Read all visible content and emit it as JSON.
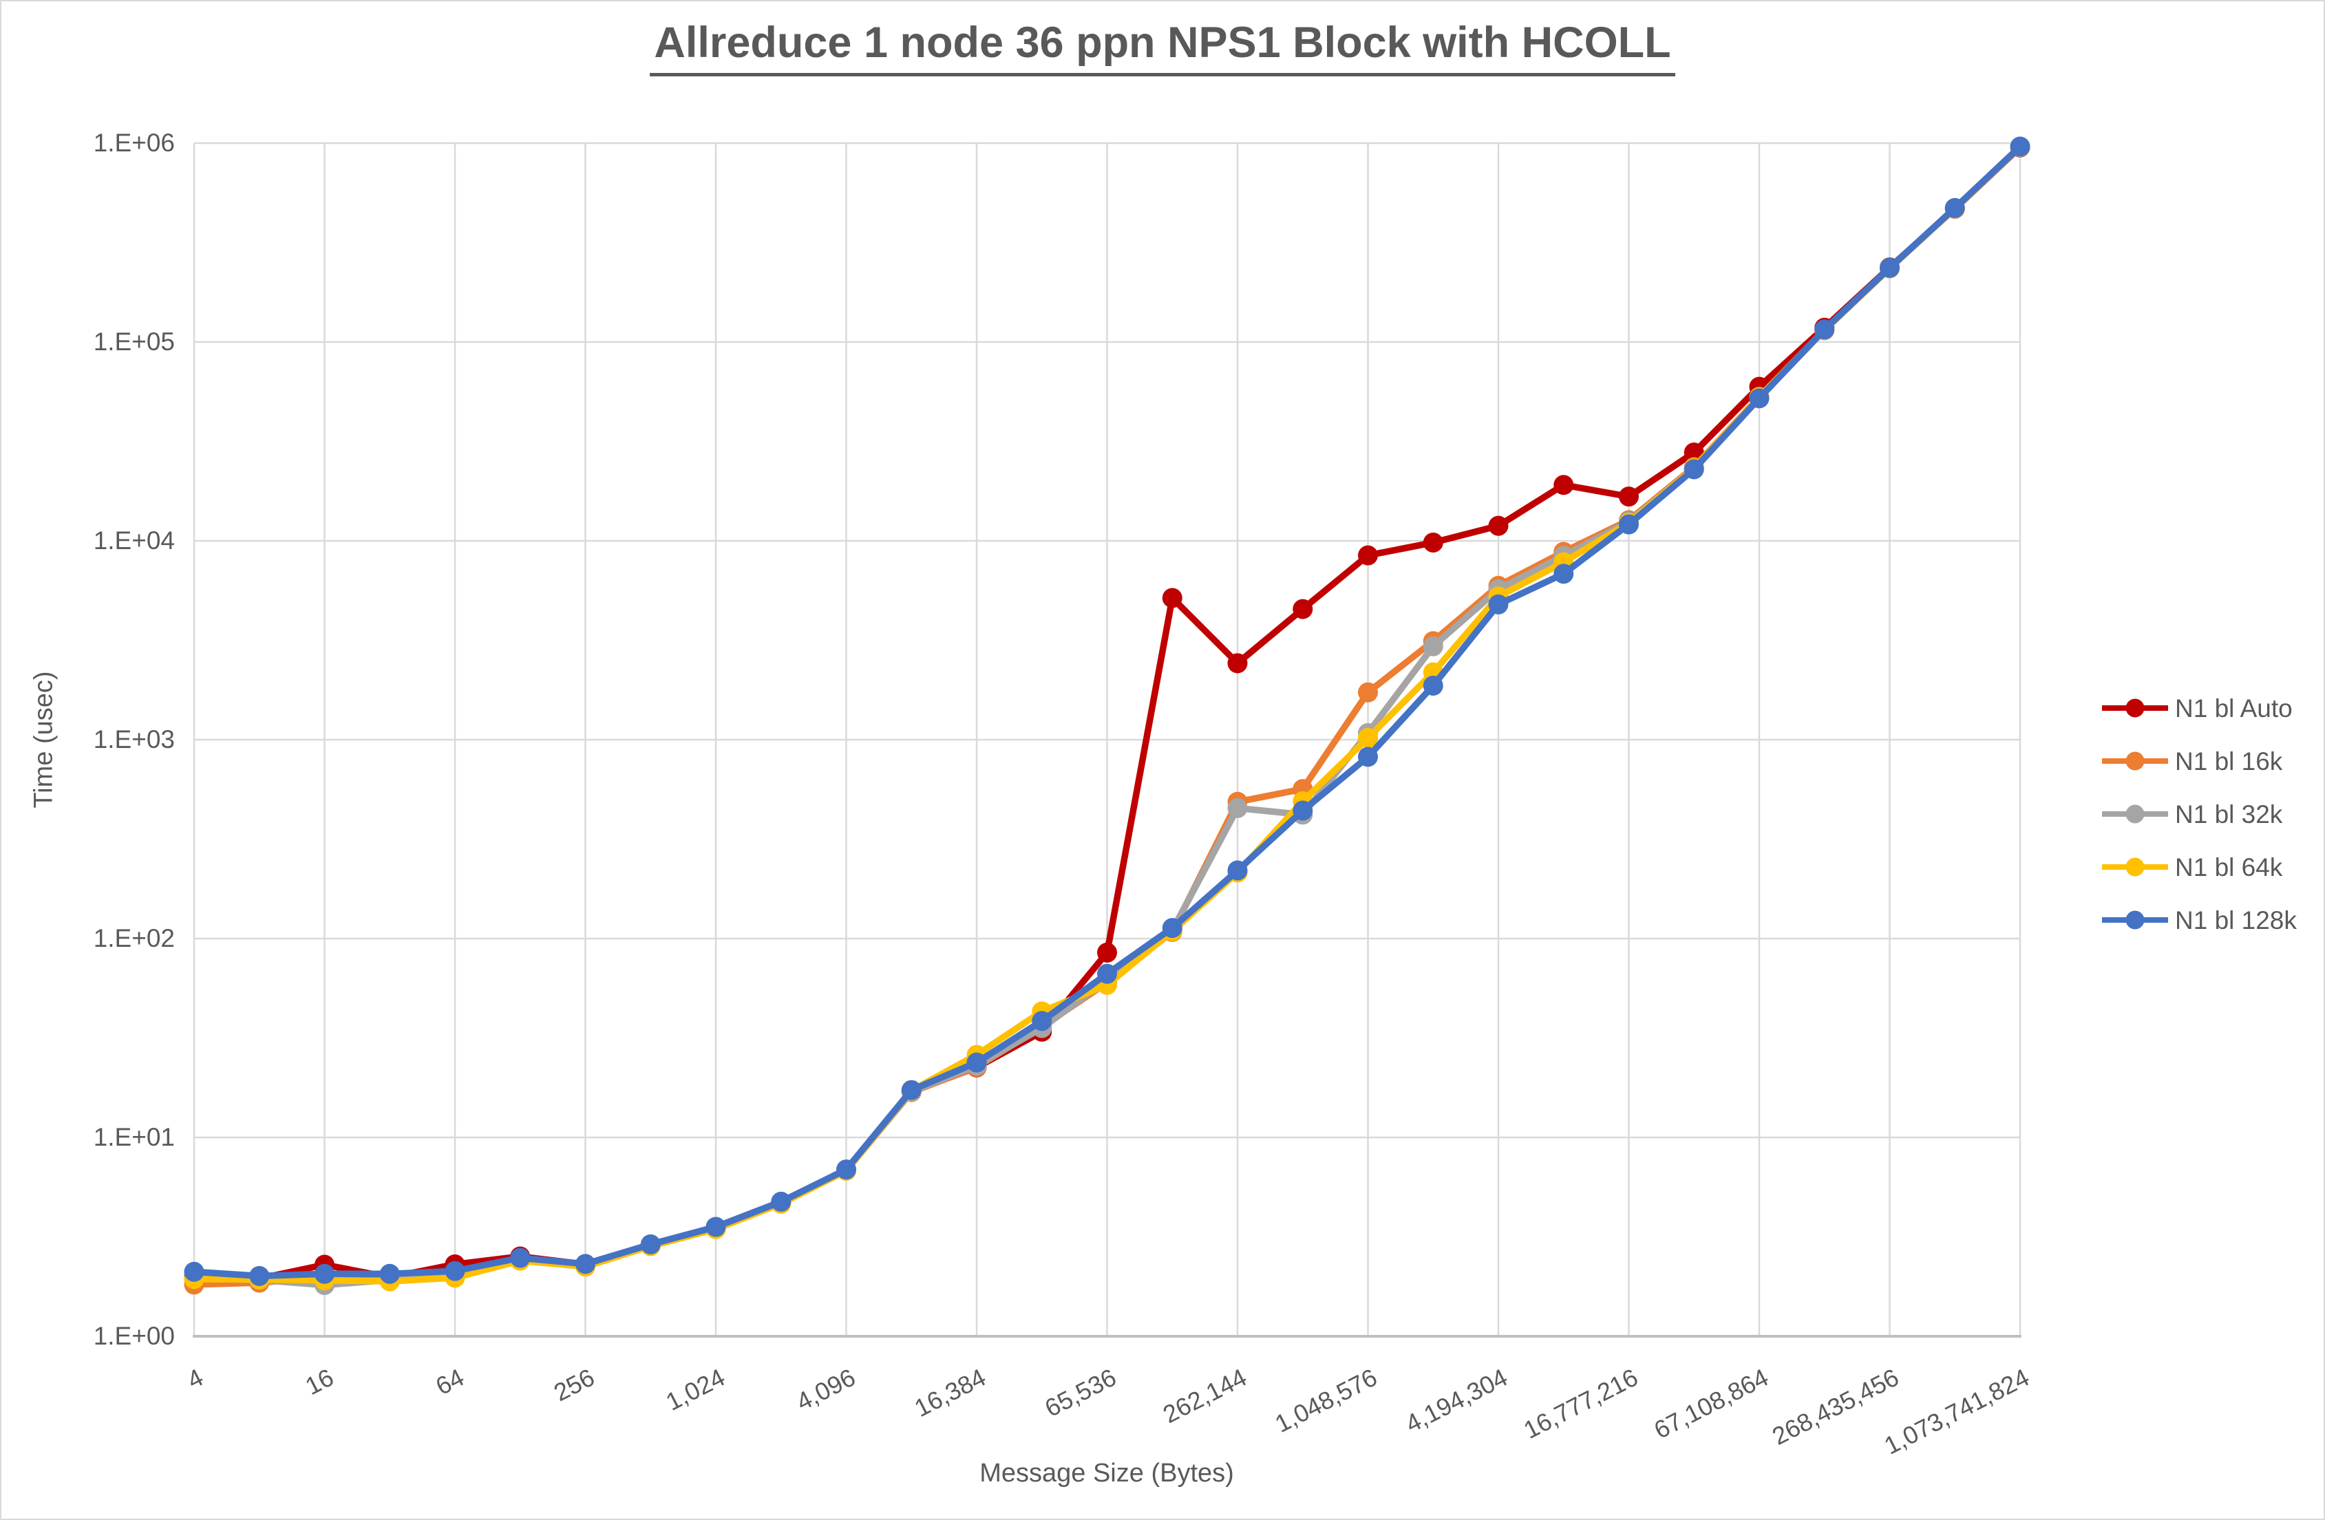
{
  "chart_data": {
    "type": "line",
    "title": "Allreduce 1 node 36 ppn NPS1 Block with HCOLL",
    "xlabel": "Message Size (Bytes)",
    "ylabel": "Time (usec)",
    "x_scale": "log2",
    "y_scale": "log10",
    "xlim": [
      4,
      1073741824
    ],
    "ylim": [
      1,
      1000000
    ],
    "grid": true,
    "legend_position": "right",
    "x": [
      4,
      8,
      16,
      32,
      64,
      128,
      256,
      512,
      1024,
      2048,
      4096,
      8192,
      16384,
      32768,
      65536,
      131072,
      262144,
      524288,
      1048576,
      2097152,
      4194304,
      8388608,
      16777216,
      33554432,
      67108864,
      134217728,
      268435456,
      536870912,
      1073741824
    ],
    "x_tick_labels": [
      "4",
      "16",
      "64",
      "256",
      "1,024",
      "4,096",
      "16,384",
      "65,536",
      "262,144",
      "1,048,576",
      "4,194,304",
      "16,777,216",
      "67,108,864",
      "268,435,456",
      "1,073,741,824"
    ],
    "y_tick_labels": [
      "1.E+00",
      "1.E+01",
      "1.E+02",
      "1.E+03",
      "1.E+04",
      "1.E+05",
      "1.E+06"
    ],
    "series": [
      {
        "name": "N1 bl Auto",
        "color": "#C00000",
        "values": [
          2.0,
          1.95,
          2.29,
          1.98,
          2.3,
          2.52,
          2.3,
          2.88,
          3.52,
          4.7,
          6.85,
          17.0,
          22.5,
          34,
          85,
          5160,
          2425,
          4540,
          8450,
          9800,
          11900,
          19100,
          16700,
          27800,
          59500,
          118000,
          237000,
          468000,
          952000
        ]
      },
      {
        "name": "N1 bl 16k",
        "color": "#ED7D31",
        "values": [
          1.82,
          1.86,
          1.98,
          1.9,
          2.05,
          2.42,
          2.25,
          2.85,
          3.48,
          4.65,
          6.8,
          16.9,
          22.6,
          36,
          60,
          108,
          487,
          565,
          1730,
          3130,
          5940,
          8800,
          12700,
          23500,
          53000,
          115000,
          235000,
          470000,
          958000
        ]
      },
      {
        "name": "N1 bl 32k",
        "color": "#A5A5A5",
        "values": [
          1.95,
          1.92,
          1.81,
          1.92,
          2.08,
          2.45,
          2.28,
          2.86,
          3.5,
          4.68,
          6.82,
          17.0,
          23.0,
          35.5,
          62,
          110,
          453,
          420,
          1080,
          2950,
          5700,
          8400,
          12500,
          23100,
          52500,
          114500,
          234500,
          469000,
          956000
        ]
      },
      {
        "name": "N1 bl 64k",
        "color": "#FFC000",
        "values": [
          1.94,
          1.93,
          1.91,
          1.89,
          1.97,
          2.4,
          2.24,
          2.84,
          3.46,
          4.64,
          6.8,
          17.2,
          26.0,
          43,
          58.5,
          109,
          215,
          490,
          1020,
          2180,
          5250,
          7800,
          12300,
          23200,
          52800,
          115000,
          235000,
          470000,
          958000
        ]
      },
      {
        "name": "N1 bl 128k",
        "color": "#4472C4",
        "values": [
          2.11,
          2.01,
          2.06,
          2.06,
          2.13,
          2.48,
          2.31,
          2.9,
          3.55,
          4.75,
          6.9,
          17.3,
          23.8,
          38.5,
          66.5,
          113,
          220,
          440,
          820,
          1870,
          4790,
          6830,
          12100,
          22900,
          52100,
          115600,
          236000,
          472000,
          961000
        ]
      }
    ]
  },
  "colors": {
    "grid": "#D9D9D9",
    "axis_line": "#BFBFBF",
    "tick_text": "#595959",
    "title_text": "#595959",
    "background": "#FFFFFF",
    "frame_border": "#D9D9D9"
  }
}
